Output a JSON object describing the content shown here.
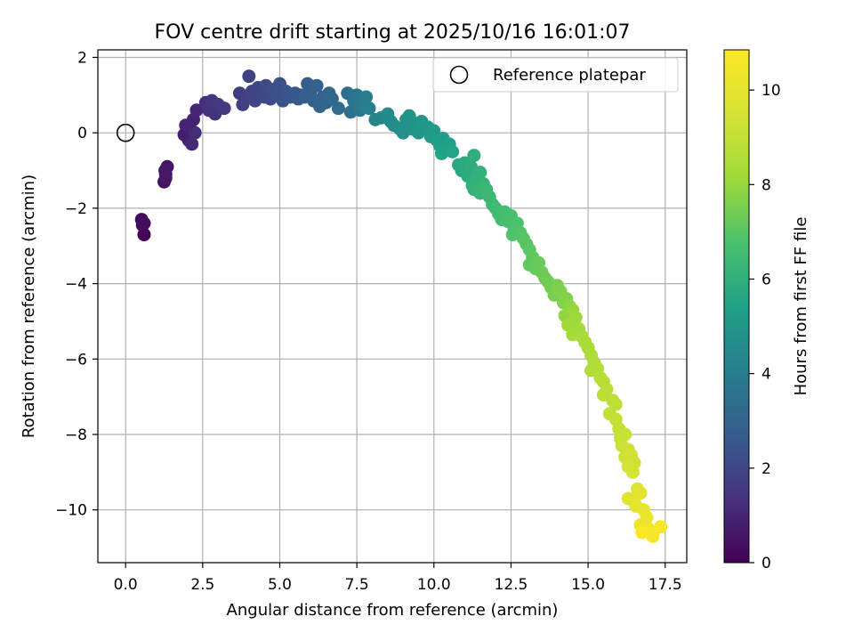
{
  "chart_data": {
    "type": "scatter",
    "title": "FOV centre drift starting at 2025/10/16 16:01:07",
    "xlabel": "Angular distance from reference (arcmin)",
    "ylabel": "Rotation from reference (arcmin)",
    "xlim": [
      -0.9,
      18.2
    ],
    "ylim": [
      -11.4,
      2.2
    ],
    "xticks": [
      0.0,
      2.5,
      5.0,
      7.5,
      10.0,
      12.5,
      15.0,
      17.5
    ],
    "xtick_labels": [
      "0.0",
      "2.5",
      "5.0",
      "7.5",
      "10.0",
      "12.5",
      "15.0",
      "17.5"
    ],
    "yticks": [
      2,
      0,
      -2,
      -4,
      -6,
      -8,
      -10
    ],
    "ytick_labels": [
      "2",
      "0",
      "−2",
      "−4",
      "−6",
      "−8",
      "−10"
    ],
    "grid": true,
    "legend": {
      "position": "top-right",
      "label": "Reference platepar"
    },
    "reference_point": {
      "x": 0.0,
      "y": 0.0
    },
    "colorbar": {
      "label": "Hours from first FF file",
      "range": [
        0,
        10.85
      ],
      "ticks": [
        0,
        2,
        4,
        6,
        8,
        10
      ],
      "tick_labels": [
        "0",
        "2",
        "4",
        "6",
        "8",
        "10"
      ],
      "colormap": "viridis"
    },
    "points": [
      [
        0.6,
        -2.7,
        0.05
      ],
      [
        0.55,
        -2.45,
        0.15
      ],
      [
        0.52,
        -2.3,
        0.25
      ],
      [
        0.6,
        -2.4,
        0.3
      ],
      [
        1.25,
        -1.3,
        0.45
      ],
      [
        1.3,
        -1.1,
        0.5
      ],
      [
        1.35,
        -0.9,
        0.55
      ],
      [
        1.28,
        -1.0,
        0.6
      ],
      [
        1.3,
        -1.2,
        0.65
      ],
      [
        1.9,
        -0.05,
        0.8
      ],
      [
        2.05,
        -0.2,
        0.85
      ],
      [
        2.1,
        0.1,
        0.9
      ],
      [
        2.2,
        0.35,
        0.95
      ],
      [
        1.95,
        0.2,
        1.0
      ],
      [
        2.3,
        0.6,
        1.05
      ],
      [
        2.15,
        -0.3,
        1.1
      ],
      [
        2.25,
        0.0,
        1.15
      ],
      [
        2.6,
        0.8,
        1.3
      ],
      [
        2.7,
        0.6,
        1.35
      ],
      [
        2.9,
        0.5,
        1.4
      ],
      [
        2.8,
        0.85,
        1.45
      ],
      [
        3.0,
        0.75,
        1.5
      ],
      [
        3.2,
        0.65,
        1.55
      ],
      [
        3.7,
        1.05,
        1.7
      ],
      [
        3.8,
        0.75,
        1.75
      ],
      [
        3.9,
        0.9,
        1.8
      ],
      [
        4.0,
        1.5,
        1.85
      ],
      [
        4.1,
        1.1,
        1.9
      ],
      [
        4.2,
        0.85,
        1.95
      ],
      [
        4.3,
        1.2,
        2.0
      ],
      [
        4.4,
        1.0,
        2.05
      ],
      [
        4.5,
        0.95,
        2.1
      ],
      [
        4.55,
        1.25,
        2.15
      ],
      [
        4.7,
        0.9,
        2.2
      ],
      [
        4.8,
        1.15,
        2.25
      ],
      [
        4.9,
        1.0,
        2.3
      ],
      [
        5.0,
        1.3,
        2.35
      ],
      [
        5.1,
        0.85,
        2.4
      ],
      [
        5.2,
        1.1,
        2.45
      ],
      [
        5.35,
        0.95,
        2.5
      ],
      [
        5.5,
        1.05,
        2.55
      ],
      [
        5.6,
        0.9,
        2.6
      ],
      [
        5.7,
        1.0,
        2.65
      ],
      [
        5.8,
        0.95,
        2.7
      ],
      [
        5.9,
        1.3,
        2.75
      ],
      [
        6.0,
        1.1,
        2.8
      ],
      [
        6.1,
        0.85,
        2.85
      ],
      [
        6.2,
        1.25,
        2.9
      ],
      [
        6.3,
        0.7,
        2.95
      ],
      [
        6.4,
        0.95,
        3.0
      ],
      [
        6.5,
        0.8,
        3.05
      ],
      [
        6.6,
        1.05,
        3.1
      ],
      [
        6.7,
        0.9,
        3.15
      ],
      [
        6.9,
        0.65,
        3.3
      ],
      [
        7.2,
        1.05,
        3.4
      ],
      [
        7.3,
        0.55,
        3.5
      ],
      [
        7.4,
        0.85,
        3.6
      ],
      [
        7.5,
        1.0,
        3.7
      ],
      [
        7.6,
        0.6,
        3.8
      ],
      [
        7.7,
        0.75,
        3.9
      ],
      [
        7.8,
        0.95,
        4.0
      ],
      [
        7.9,
        0.65,
        4.1
      ],
      [
        8.1,
        0.35,
        4.3
      ],
      [
        8.3,
        0.4,
        4.4
      ],
      [
        8.5,
        0.5,
        4.5
      ],
      [
        8.6,
        0.3,
        4.55
      ],
      [
        8.7,
        0.2,
        4.6
      ],
      [
        8.9,
        0.1,
        4.7
      ],
      [
        9.0,
        0.0,
        4.75
      ],
      [
        9.1,
        0.35,
        4.8
      ],
      [
        9.2,
        0.45,
        4.85
      ],
      [
        9.3,
        0.1,
        4.9
      ],
      [
        9.4,
        0.25,
        4.95
      ],
      [
        9.5,
        0.0,
        5.0
      ],
      [
        9.6,
        0.3,
        5.05
      ],
      [
        9.8,
        0.15,
        5.1
      ],
      [
        9.9,
        -0.1,
        5.15
      ],
      [
        10.0,
        0.05,
        5.2
      ],
      [
        10.1,
        -0.2,
        5.25
      ],
      [
        10.2,
        -0.35,
        5.3
      ],
      [
        10.3,
        -0.15,
        5.35
      ],
      [
        10.4,
        -0.4,
        5.4
      ],
      [
        10.5,
        -0.3,
        5.45
      ],
      [
        10.25,
        -0.55,
        5.5
      ],
      [
        10.6,
        -0.5,
        5.55
      ],
      [
        10.8,
        -0.85,
        5.7
      ],
      [
        10.9,
        -1.0,
        5.75
      ],
      [
        11.0,
        -0.8,
        5.8
      ],
      [
        11.1,
        -1.15,
        5.85
      ],
      [
        11.2,
        -0.9,
        5.9
      ],
      [
        11.3,
        -0.6,
        5.95
      ],
      [
        11.25,
        -1.4,
        6.0
      ],
      [
        11.4,
        -1.2,
        6.05
      ],
      [
        11.5,
        -1.05,
        6.1
      ],
      [
        11.3,
        -1.5,
        6.15
      ],
      [
        11.6,
        -1.35,
        6.2
      ],
      [
        11.5,
        -1.6,
        6.25
      ],
      [
        11.7,
        -1.5,
        6.3
      ],
      [
        11.8,
        -1.7,
        6.35
      ],
      [
        11.9,
        -1.9,
        6.4
      ],
      [
        12.0,
        -2.0,
        6.45
      ],
      [
        12.1,
        -2.15,
        6.5
      ],
      [
        12.2,
        -2.3,
        6.55
      ],
      [
        12.3,
        -2.1,
        6.6
      ],
      [
        12.4,
        -2.35,
        6.65
      ],
      [
        12.5,
        -2.2,
        6.7
      ],
      [
        12.6,
        -2.5,
        6.75
      ],
      [
        12.7,
        -2.4,
        6.8
      ],
      [
        12.55,
        -2.7,
        6.85
      ],
      [
        12.8,
        -2.65,
        6.9
      ],
      [
        12.9,
        -2.8,
        6.95
      ],
      [
        13.0,
        -2.95,
        7.0
      ],
      [
        13.1,
        -3.1,
        7.05
      ],
      [
        13.2,
        -3.3,
        7.1
      ],
      [
        13.1,
        -3.5,
        7.15
      ],
      [
        13.3,
        -3.6,
        7.2
      ],
      [
        13.4,
        -3.45,
        7.25
      ],
      [
        13.5,
        -3.7,
        7.3
      ],
      [
        13.6,
        -3.85,
        7.35
      ],
      [
        13.7,
        -3.95,
        7.4
      ],
      [
        13.8,
        -4.1,
        7.45
      ],
      [
        13.9,
        -4.3,
        7.5
      ],
      [
        14.0,
        -4.05,
        7.55
      ],
      [
        14.1,
        -4.2,
        7.6
      ],
      [
        14.2,
        -4.5,
        7.65
      ],
      [
        14.3,
        -4.4,
        7.7
      ],
      [
        14.4,
        -4.6,
        7.8
      ],
      [
        14.25,
        -4.85,
        7.9
      ],
      [
        14.5,
        -4.7,
        8.0
      ],
      [
        14.6,
        -4.9,
        8.1
      ],
      [
        14.35,
        -5.1,
        8.15
      ],
      [
        14.7,
        -5.2,
        8.2
      ],
      [
        14.5,
        -5.35,
        8.25
      ],
      [
        14.8,
        -5.4,
        8.3
      ],
      [
        14.9,
        -5.55,
        8.35
      ],
      [
        15.0,
        -5.7,
        8.4
      ],
      [
        15.1,
        -5.9,
        8.45
      ],
      [
        15.2,
        -6.1,
        8.5
      ],
      [
        15.1,
        -6.3,
        8.55
      ],
      [
        15.3,
        -6.25,
        8.6
      ],
      [
        15.4,
        -6.5,
        8.65
      ],
      [
        15.5,
        -6.6,
        8.7
      ],
      [
        15.6,
        -6.8,
        8.75
      ],
      [
        15.5,
        -6.95,
        8.8
      ],
      [
        15.8,
        -7.1,
        8.85
      ],
      [
        15.9,
        -7.2,
        8.9
      ],
      [
        15.7,
        -7.45,
        8.95
      ],
      [
        15.9,
        -7.6,
        9.0
      ],
      [
        16.0,
        -7.85,
        9.05
      ],
      [
        16.05,
        -8.1,
        9.1
      ],
      [
        16.2,
        -8.0,
        9.15
      ],
      [
        16.1,
        -8.3,
        9.2
      ],
      [
        16.3,
        -8.4,
        9.25
      ],
      [
        16.2,
        -8.6,
        9.3
      ],
      [
        16.4,
        -8.55,
        9.35
      ],
      [
        16.5,
        -8.75,
        9.4
      ],
      [
        16.3,
        -8.85,
        9.45
      ],
      [
        16.45,
        -9.0,
        9.5
      ],
      [
        16.6,
        -9.45,
        9.7
      ],
      [
        16.3,
        -9.7,
        9.8
      ],
      [
        16.5,
        -9.75,
        9.9
      ],
      [
        16.7,
        -9.55,
        9.95
      ],
      [
        16.55,
        -9.9,
        10.0
      ],
      [
        16.8,
        -10.0,
        10.1
      ],
      [
        16.9,
        -10.2,
        10.2
      ],
      [
        16.7,
        -10.4,
        10.3
      ],
      [
        16.95,
        -10.5,
        10.4
      ],
      [
        17.1,
        -10.7,
        10.55
      ],
      [
        17.35,
        -10.45,
        10.7
      ],
      [
        16.75,
        -10.6,
        10.8
      ]
    ]
  }
}
